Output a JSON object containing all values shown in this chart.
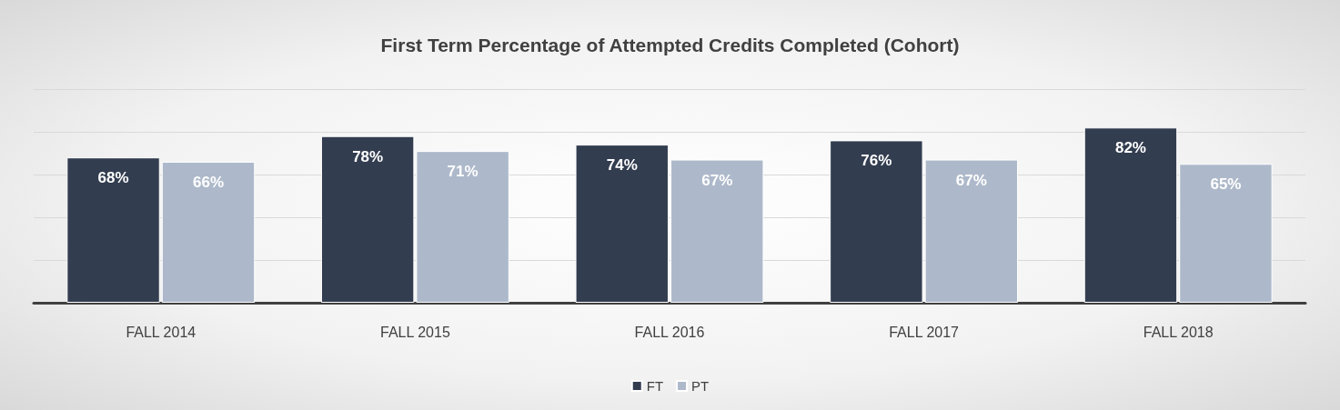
{
  "chart_data": {
    "type": "bar",
    "title": "First Term Percentage of Attempted Credits Completed (Cohort)",
    "categories": [
      "FALL 2014",
      "FALL 2015",
      "FALL 2016",
      "FALL 2017",
      "FALL 2018"
    ],
    "series": [
      {
        "name": "FT",
        "color": "#333d50",
        "values": [
          68,
          78,
          74,
          76,
          82
        ],
        "value_labels": [
          "68%",
          "78%",
          "74%",
          "76%",
          "82%"
        ]
      },
      {
        "name": "PT",
        "color": "#adb9ca",
        "values": [
          66,
          71,
          67,
          67,
          65
        ],
        "value_labels": [
          "66%",
          "71%",
          "67%",
          "67%",
          "65%"
        ]
      }
    ],
    "ylim": [
      0,
      100
    ],
    "yticks": [
      {
        "value": 0,
        "label": null
      },
      {
        "value": 20,
        "label": null
      },
      {
        "value": 40,
        "label": null
      },
      {
        "value": 60,
        "label": null
      },
      {
        "value": 80,
        "label": null
      },
      {
        "value": 100,
        "label": null
      }
    ],
    "tick_labels": "x",
    "grid": "y",
    "legend": "bottom"
  }
}
